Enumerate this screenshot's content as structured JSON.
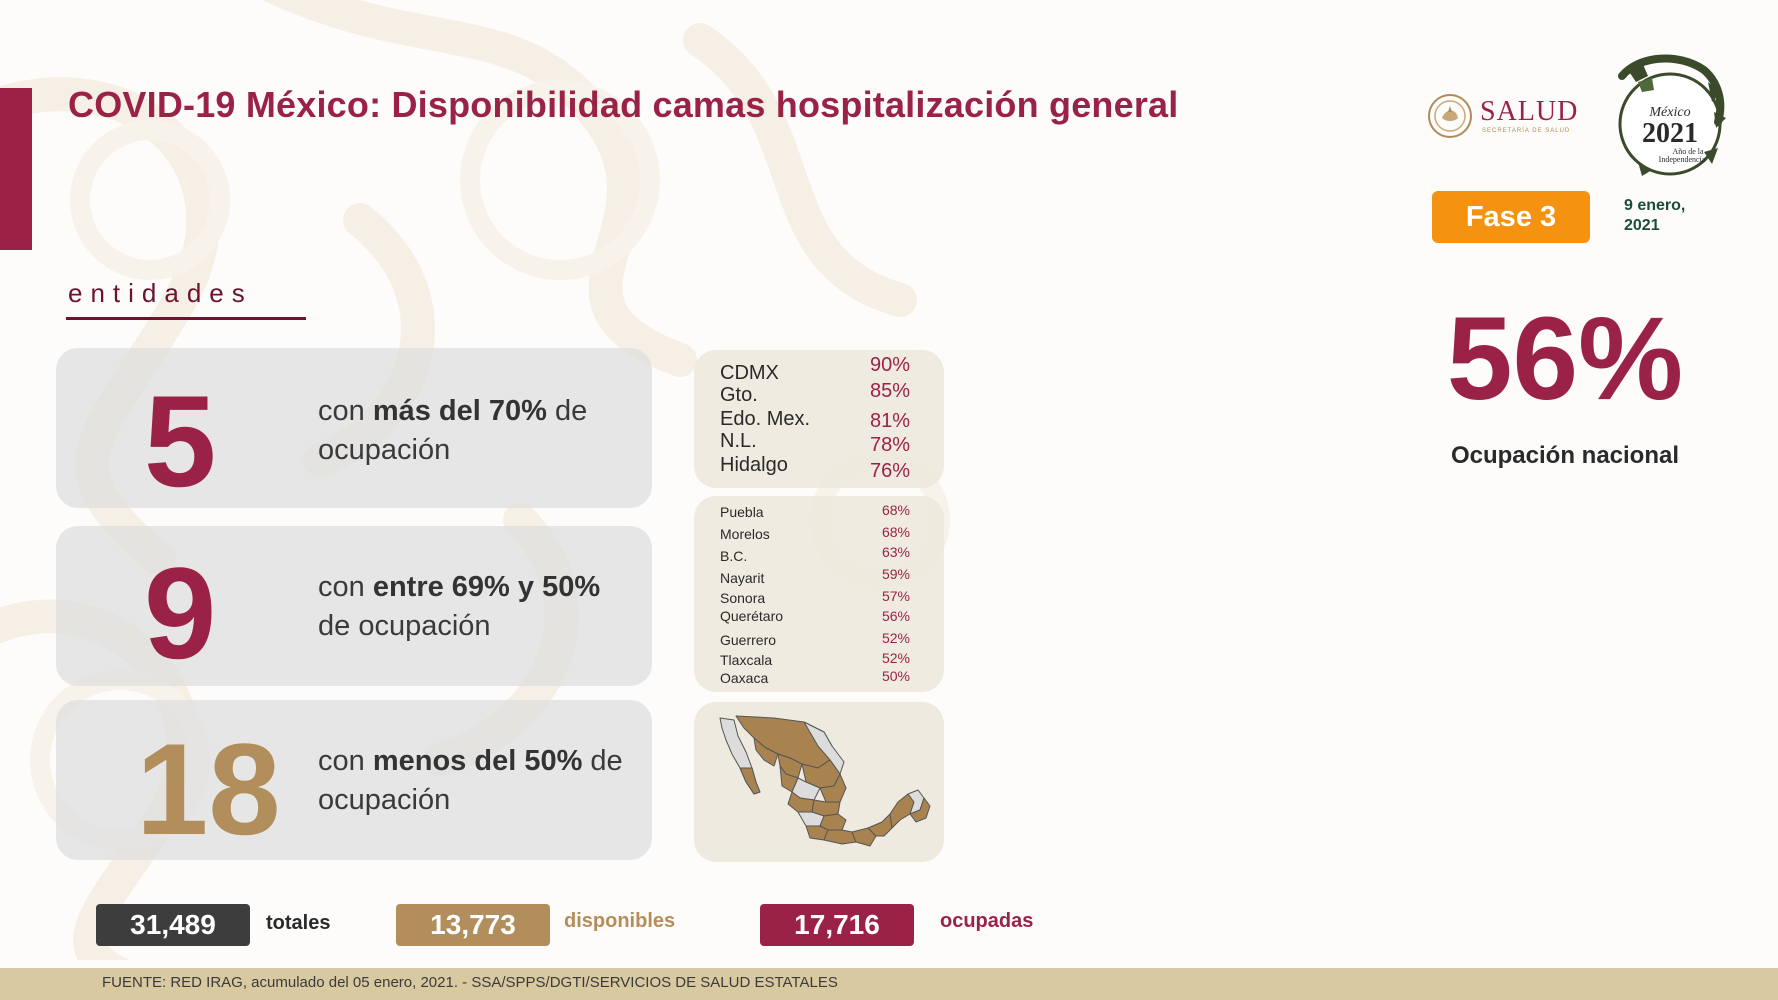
{
  "title": "COVID-19 México: Disponibilidad camas hospitalización general",
  "section_label": "entidades",
  "stats": [
    {
      "number": "5",
      "text_pre": "con ",
      "text_bold": "más del 70%",
      "text_post": " de ocupación",
      "color": "#9b2247"
    },
    {
      "number": "9",
      "text_pre": "con ",
      "text_bold": "entre 69% y 50%",
      "text_post": " de ocupación",
      "color": "#9b2247"
    },
    {
      "number": "18",
      "text_pre": "con ",
      "text_bold": "menos del 50%",
      "text_post": " de ocupación",
      "color": "#b38e5d"
    }
  ],
  "high_list": [
    {
      "name": "CDMX",
      "pct": "90%"
    },
    {
      "name": "Gto.",
      "pct": "85%"
    },
    {
      "name": "Edo. Mex.",
      "pct": "81%"
    },
    {
      "name": "N.L.",
      "pct": "78%"
    },
    {
      "name": "Hidalgo",
      "pct": "76%"
    }
  ],
  "mid_list": [
    {
      "name": "Puebla",
      "pct": "68%"
    },
    {
      "name": "Morelos",
      "pct": "68%"
    },
    {
      "name": "B.C.",
      "pct": "63%"
    },
    {
      "name": "Nayarit",
      "pct": "59%"
    },
    {
      "name": "Sonora",
      "pct": "57%"
    },
    {
      "name": "Querétaro",
      "pct": "56%"
    },
    {
      "name": "Guerrero",
      "pct": "52%"
    },
    {
      "name": "Tlaxcala",
      "pct": "52%"
    },
    {
      "name": "Oaxaca",
      "pct": "50%"
    }
  ],
  "logos": {
    "salud_text": "SALUD",
    "salud_subtext": "SECRETARÍA DE SALUD",
    "year_top": "México",
    "year": "2021",
    "year_caption_1": "Año de la",
    "year_caption_2": "Independencia"
  },
  "phase": "Fase 3",
  "date_line1": "9 enero,",
  "date_line2": "2021",
  "national_pct": "56%",
  "national_label": "Ocupación nacional",
  "totals": [
    {
      "value": "31,489",
      "label": "totales",
      "box_color": "#3d3d3d",
      "label_color": "#2a2a2a"
    },
    {
      "value": "13,773",
      "label": "disponibles",
      "box_color": "#b38e5d",
      "label_color": "#b38e5d"
    },
    {
      "value": "17,716",
      "label": "ocupadas",
      "box_color": "#9b2247",
      "label_color": "#9b2247"
    }
  ],
  "footer": "FUENTE: RED IRAG, acumulado del 05 enero, 2021. -  SSA/SPPS/DGTI/SERVICIOS DE SALUD ESTATALES",
  "colors": {
    "brand": "#9b2247",
    "gold": "#b38e5d",
    "orange": "#f5920f",
    "green": "#1d4d3a"
  }
}
